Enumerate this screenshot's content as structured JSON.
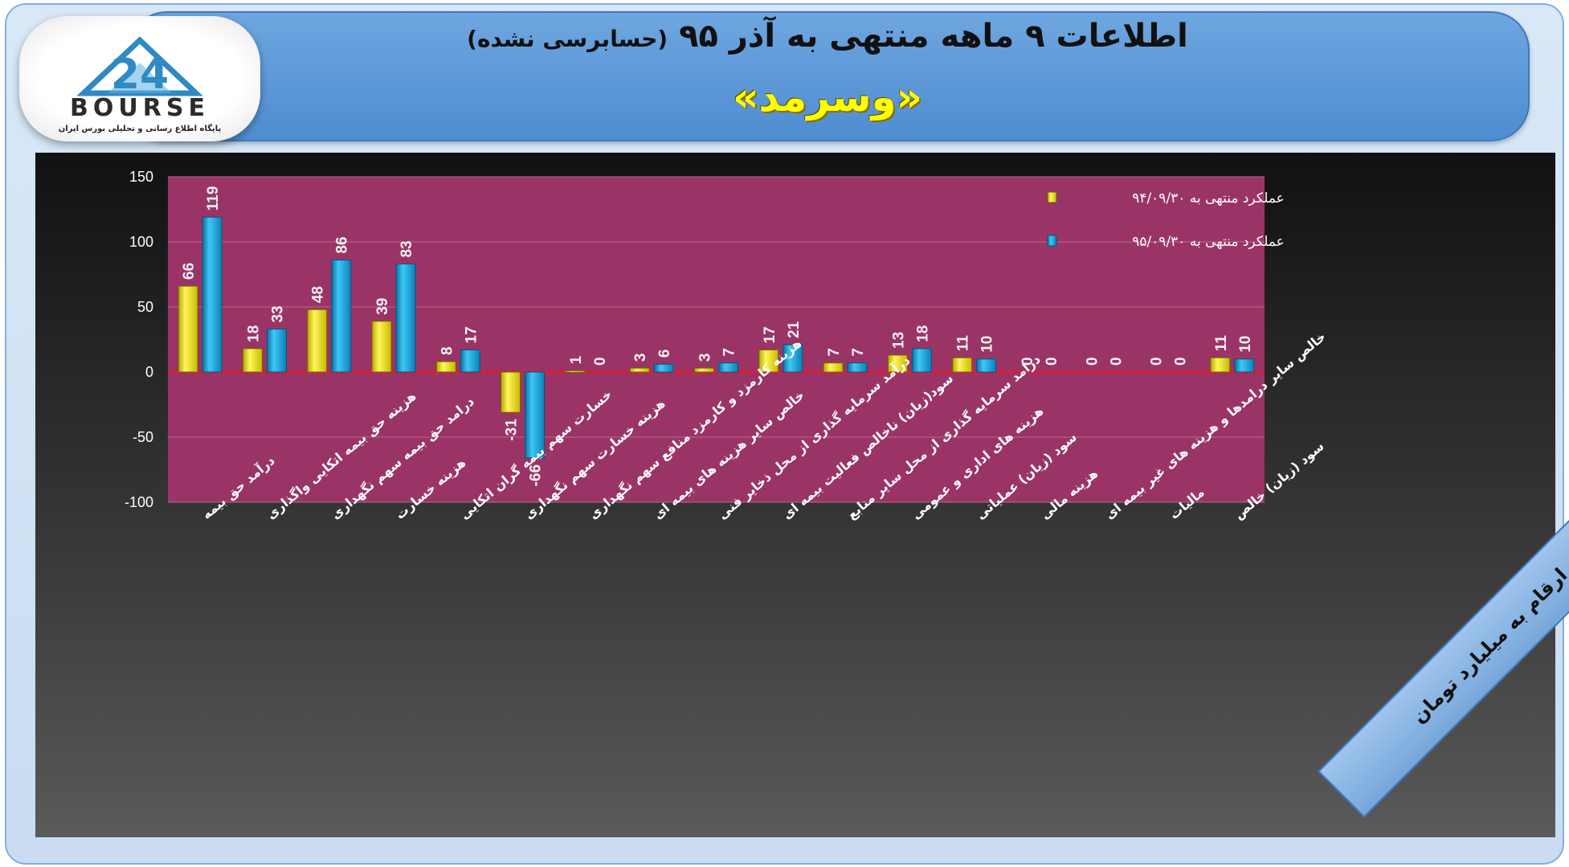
{
  "header": {
    "title": "اطلاعات ۹ ماهه منتهی به آذر ۹۵",
    "title_note": "(حسابرسی نشده)",
    "company": "«وسرمد»"
  },
  "logo": {
    "mark": "24",
    "wordmark": "BOURSE",
    "tagline": "پایگاه اطلاع رسانی و تحلیلی بورس ایران"
  },
  "units_note": "ارقام به میلیارد تومان",
  "colors": {
    "plot_bg": "#9b3466",
    "series_1": "#f2e600",
    "series_2": "#1aa6e0",
    "zero_line": "#e8162c"
  },
  "chart_data": {
    "type": "bar",
    "ylim": [
      -100,
      150
    ],
    "yticks": [
      "150",
      "100",
      "50",
      "0",
      "-50",
      "-100"
    ],
    "ytick_values": [
      150,
      100,
      50,
      0,
      -50,
      -100
    ],
    "grid": true,
    "legend_placement": "top-right",
    "categories": [
      "درآمد حق بیمه",
      "هزینه حق بیمه اتکایی واگذاری",
      "درامد حق بیمه سهم نگهداری",
      "هزینه خسارت",
      "خسارت سهم بیمه گران اتکایی",
      "هزینه خسارت سهم نگهداری",
      "هزینه کارمزد و کارمزد منافع سهم نگهداری",
      "خالص سایر هزینه های بیمه ای",
      "درآمد سرمایه گذاری از محل ذخایر فنی",
      "سود(زیان) ناخالص فعالیت بیمه ای",
      "درامد سرمایه گذاری از محل سایر منابع",
      "هزینه های اداری و عمومی",
      "سود (زیان) عملیاتی",
      "هزینه مالی",
      "خالص سایر درامدها و هزینه های غیر بیمه ای",
      "مالیات",
      "سود (زیان) خالص"
    ],
    "series": [
      {
        "name": "عملکرد منتهی به ۹۴/۰۹/۳۰",
        "values": [
          66,
          18,
          48,
          39,
          8,
          -31,
          1,
          3,
          3,
          17,
          7,
          13,
          11,
          0,
          0,
          0,
          11
        ],
        "labels": [
          "66",
          "18",
          "48",
          "39",
          "8",
          "-31",
          "1",
          "3",
          "3",
          "17",
          "7",
          "13",
          "11",
          "0",
          "0",
          "0",
          "11"
        ]
      },
      {
        "name": "عملکرد منتهی به ۹۵/۰۹/۳۰",
        "values": [
          119,
          33,
          86,
          83,
          17,
          -66,
          0,
          6,
          7,
          21,
          7,
          18,
          10,
          0,
          0,
          0,
          10
        ],
        "labels": [
          "119",
          "33",
          "86",
          "83",
          "17",
          "-66",
          "0",
          "6",
          "7",
          "21",
          "7",
          "18",
          "10",
          "0",
          "0",
          "0",
          "10"
        ]
      }
    ]
  }
}
